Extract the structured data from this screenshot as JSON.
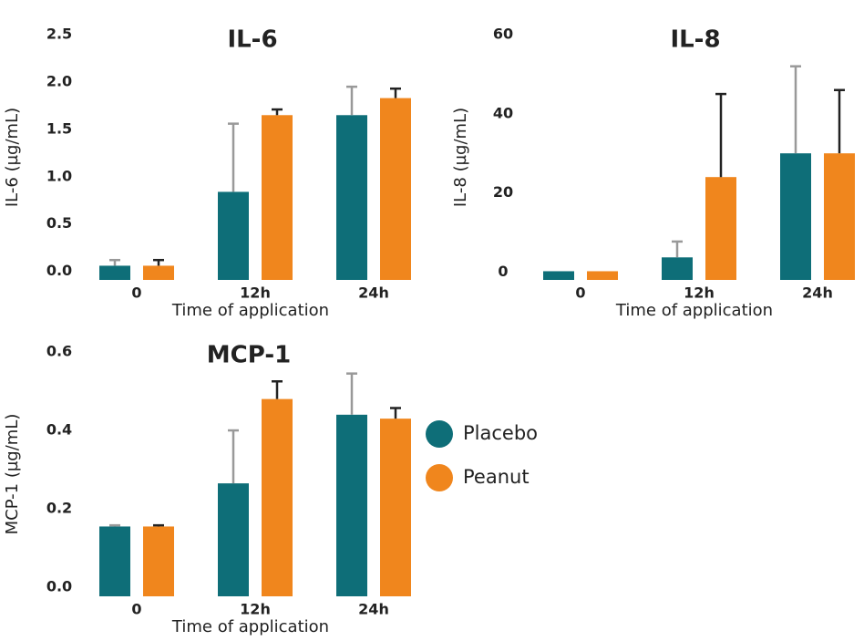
{
  "chart_data": [
    {
      "type": "bar",
      "title": "IL-6",
      "ylabel": "IL-6 (µg/mL)",
      "xlabel": "Time of application",
      "categories": [
        "0",
        "12h",
        "24h"
      ],
      "series": [
        {
          "color": "#0e6e78",
          "error_color": "#999999",
          "values": [
            0.06,
            0.84,
            1.65
          ],
          "errors": [
            0.06,
            0.72,
            0.3
          ]
        },
        {
          "color": "#f0861d",
          "error_color": "#222222",
          "values": [
            0.06,
            1.65,
            1.83
          ],
          "errors": [
            0.06,
            0.06,
            0.1
          ]
        }
      ],
      "ylim": [
        -0.09,
        2.5
      ],
      "yticks": [
        {
          "value": 0,
          "label": "0.0"
        },
        0.5,
        {
          "value": 1,
          "label": "1.0"
        },
        1.5,
        {
          "value": 2,
          "label": "2.0"
        },
        2.5
      ]
    },
    {
      "type": "bar",
      "title": "IL-8",
      "ylabel": "IL-8 (µg/mL)",
      "xlabel": "Time of application",
      "categories": [
        "0",
        "12h",
        "24h"
      ],
      "series": [
        {
          "color": "#0e6e78",
          "error_color": "#999999",
          "values": [
            0.2,
            3.7,
            30
          ],
          "errors": [
            0,
            4,
            22
          ]
        },
        {
          "color": "#f0861d",
          "error_color": "#222222",
          "values": [
            0.2,
            24,
            30
          ],
          "errors": [
            0,
            21,
            16
          ]
        }
      ],
      "ylim": [
        -2,
        60
      ],
      "yticks": [
        0,
        20,
        40,
        60
      ]
    },
    {
      "type": "bar",
      "title": "MCP-1",
      "ylabel": "MCP-1 (µg/mL)",
      "xlabel": "Time of application",
      "categories": [
        "0",
        "12h",
        "24h"
      ],
      "series": [
        {
          "name": "Placebo",
          "color": "#0e6e78",
          "error_color": "#999999",
          "values": [
            0.155,
            0.265,
            0.44
          ],
          "errors": [
            0.003,
            0.135,
            0.105
          ]
        },
        {
          "name": "Peanut",
          "color": "#f0861d",
          "error_color": "#222222",
          "values": [
            0.155,
            0.48,
            0.43
          ],
          "errors": [
            0.003,
            0.045,
            0.027
          ]
        }
      ],
      "ylim": [
        -0.023,
        0.6
      ],
      "yticks": [
        {
          "value": 0,
          "label": "0.0"
        },
        0.2,
        0.4,
        0.6
      ]
    }
  ]
}
